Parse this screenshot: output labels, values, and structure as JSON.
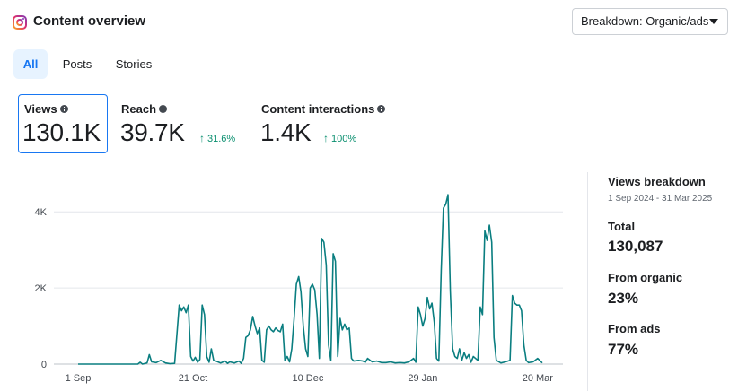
{
  "header": {
    "title": "Content overview",
    "icon": "instagram-icon",
    "breakdown_dropdown": "Breakdown: Organic/ads"
  },
  "tabs": [
    {
      "label": "All",
      "active": true
    },
    {
      "label": "Posts",
      "active": false
    },
    {
      "label": "Stories",
      "active": false
    }
  ],
  "metrics": {
    "views": {
      "label": "Views",
      "value": "130.1K"
    },
    "reach": {
      "label": "Reach",
      "value": "39.7K",
      "change": "31.6%"
    },
    "interactions": {
      "label": "Content interactions",
      "value": "1.4K",
      "change": "100%"
    }
  },
  "breakdown": {
    "title": "Views breakdown",
    "date_range": "1 Sep 2024 - 31 Mar 2025",
    "total_label": "Total",
    "total_value": "130,087",
    "organic_label": "From organic",
    "organic_value": "23%",
    "ads_label": "From ads",
    "ads_value": "77%"
  },
  "colors": {
    "accent": "#1877f2",
    "line": "#0a7e80",
    "positive": "#0a8f6f"
  },
  "chart_data": {
    "type": "line",
    "ylim": [
      0,
      4500
    ],
    "y_ticks": [
      {
        "value": 0,
        "label": "0"
      },
      {
        "value": 2000,
        "label": "2K"
      },
      {
        "value": 4000,
        "label": "4K"
      }
    ],
    "x_range": [
      0,
      211
    ],
    "x_ticks": [
      {
        "day": 0,
        "label": "1 Sep"
      },
      {
        "day": 50,
        "label": "21 Oct"
      },
      {
        "day": 100,
        "label": "10 Dec"
      },
      {
        "day": 150,
        "label": "29 Jan"
      },
      {
        "day": 200,
        "label": "20 Mar"
      }
    ],
    "grid": true,
    "series": [
      {
        "points": [
          [
            0,
            0
          ],
          [
            10,
            0
          ],
          [
            20,
            0
          ],
          [
            26,
            0
          ],
          [
            27,
            50
          ],
          [
            28,
            0
          ],
          [
            30,
            30
          ],
          [
            31,
            250
          ],
          [
            32,
            60
          ],
          [
            34,
            40
          ],
          [
            36,
            100
          ],
          [
            38,
            30
          ],
          [
            40,
            10
          ],
          [
            42,
            20
          ],
          [
            44,
            1550
          ],
          [
            45,
            1400
          ],
          [
            46,
            1500
          ],
          [
            47,
            1350
          ],
          [
            48,
            1550
          ],
          [
            49,
            200
          ],
          [
            50,
            80
          ],
          [
            51,
            180
          ],
          [
            52,
            50
          ],
          [
            53,
            120
          ],
          [
            54,
            1550
          ],
          [
            55,
            1300
          ],
          [
            56,
            200
          ],
          [
            57,
            50
          ],
          [
            58,
            400
          ],
          [
            59,
            100
          ],
          [
            60,
            80
          ],
          [
            62,
            30
          ],
          [
            64,
            80
          ],
          [
            65,
            20
          ],
          [
            66,
            60
          ],
          [
            68,
            30
          ],
          [
            70,
            80
          ],
          [
            71,
            20
          ],
          [
            72,
            150
          ],
          [
            73,
            700
          ],
          [
            74,
            750
          ],
          [
            75,
            900
          ],
          [
            76,
            1250
          ],
          [
            77,
            1000
          ],
          [
            78,
            800
          ],
          [
            79,
            950
          ],
          [
            80,
            100
          ],
          [
            81,
            50
          ],
          [
            82,
            900
          ],
          [
            83,
            1000
          ],
          [
            84,
            900
          ],
          [
            85,
            850
          ],
          [
            86,
            950
          ],
          [
            87,
            880
          ],
          [
            88,
            850
          ],
          [
            89,
            1050
          ],
          [
            90,
            100
          ],
          [
            91,
            200
          ],
          [
            92,
            60
          ],
          [
            93,
            400
          ],
          [
            94,
            1200
          ],
          [
            95,
            2100
          ],
          [
            96,
            2300
          ],
          [
            97,
            1900
          ],
          [
            98,
            1000
          ],
          [
            99,
            400
          ],
          [
            100,
            200
          ],
          [
            101,
            2000
          ],
          [
            102,
            2100
          ],
          [
            103,
            1950
          ],
          [
            104,
            1300
          ],
          [
            105,
            150
          ],
          [
            106,
            3300
          ],
          [
            107,
            3200
          ],
          [
            108,
            2600
          ],
          [
            109,
            500
          ],
          [
            110,
            100
          ],
          [
            111,
            2900
          ],
          [
            112,
            2700
          ],
          [
            113,
            200
          ],
          [
            114,
            1200
          ],
          [
            115,
            900
          ],
          [
            116,
            1050
          ],
          [
            117,
            900
          ],
          [
            118,
            950
          ],
          [
            119,
            150
          ],
          [
            120,
            80
          ],
          [
            122,
            100
          ],
          [
            124,
            80
          ],
          [
            125,
            50
          ],
          [
            126,
            150
          ],
          [
            128,
            60
          ],
          [
            130,
            80
          ],
          [
            132,
            40
          ],
          [
            134,
            40
          ],
          [
            136,
            60
          ],
          [
            138,
            30
          ],
          [
            140,
            40
          ],
          [
            142,
            30
          ],
          [
            144,
            60
          ],
          [
            146,
            150
          ],
          [
            147,
            50
          ],
          [
            148,
            1500
          ],
          [
            149,
            1300
          ],
          [
            150,
            1000
          ],
          [
            151,
            1200
          ],
          [
            152,
            1750
          ],
          [
            153,
            1450
          ],
          [
            154,
            1600
          ],
          [
            155,
            1100
          ],
          [
            156,
            150
          ],
          [
            157,
            80
          ],
          [
            158,
            2450
          ],
          [
            159,
            4100
          ],
          [
            160,
            4200
          ],
          [
            161,
            4450
          ],
          [
            162,
            1900
          ],
          [
            163,
            400
          ],
          [
            164,
            200
          ],
          [
            165,
            150
          ],
          [
            166,
            400
          ],
          [
            167,
            100
          ],
          [
            168,
            300
          ],
          [
            169,
            150
          ],
          [
            170,
            250
          ],
          [
            171,
            50
          ],
          [
            172,
            200
          ],
          [
            174,
            100
          ],
          [
            175,
            1500
          ],
          [
            176,
            1300
          ],
          [
            177,
            3500
          ],
          [
            178,
            3250
          ],
          [
            179,
            3650
          ],
          [
            180,
            3200
          ],
          [
            181,
            700
          ],
          [
            182,
            100
          ],
          [
            184,
            30
          ],
          [
            186,
            60
          ],
          [
            188,
            100
          ],
          [
            189,
            1800
          ],
          [
            190,
            1600
          ],
          [
            191,
            1550
          ],
          [
            192,
            1550
          ],
          [
            193,
            1400
          ],
          [
            194,
            500
          ],
          [
            195,
            100
          ],
          [
            196,
            40
          ],
          [
            198,
            60
          ],
          [
            200,
            150
          ],
          [
            202,
            30
          ]
        ]
      }
    ]
  }
}
